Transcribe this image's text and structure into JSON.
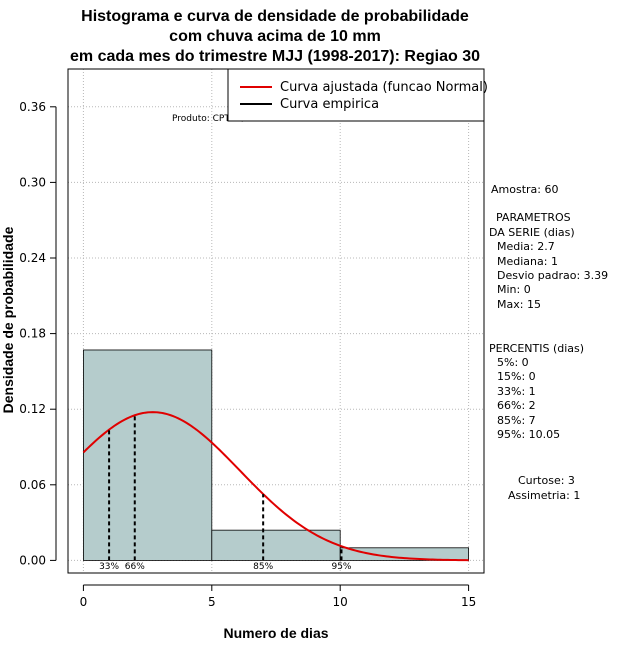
{
  "chart_data": {
    "type": "bar",
    "title_lines": [
      "Histograma e curva de densidade de probabilidade",
      "com chuva acima de 10 mm",
      "em cada mes do trimestre MJJ (1998-2017): Regiao 30"
    ],
    "xlabel": "Numero de dias",
    "ylabel": "Densidade de probabilidade",
    "xlim": [
      -0.6,
      15.6
    ],
    "ylim": [
      -0.01,
      0.39
    ],
    "x_ticks": [
      0,
      5,
      10,
      15
    ],
    "y_ticks": [
      0.0,
      0.06,
      0.12,
      0.18,
      0.24,
      0.3,
      0.36
    ],
    "y_tick_labels": [
      "0.00",
      "0.06",
      "0.12",
      "0.18",
      "0.24",
      "0.30",
      "0.36"
    ],
    "grid": true,
    "bins": [
      {
        "x0": 0,
        "x1": 5,
        "density": 0.167
      },
      {
        "x0": 5,
        "x1": 10,
        "density": 0.024
      },
      {
        "x0": 10,
        "x1": 15,
        "density": 0.01
      }
    ],
    "fitted_curve": {
      "name": "Curva ajustada (funcao Normal)",
      "mean": 2.7,
      "sd": 3.39,
      "x_range": [
        0,
        15
      ],
      "color": "#e00000"
    },
    "empirical_curve": {
      "name": "Curva empirica",
      "color": "#000000"
    },
    "percentile_lines": [
      {
        "x": 1,
        "label": "33%"
      },
      {
        "x": 2,
        "label": "66%"
      },
      {
        "x": 7,
        "label": "85%"
      },
      {
        "x": 10.05,
        "label": "95%"
      }
    ],
    "bar_color": "#b5cccc",
    "legend_position": "top-right",
    "annotation": "Produto: CPTEC/INPE"
  },
  "side_panel": {
    "sample": "Amostra: 60",
    "params_title_1": "PARAMETROS",
    "params_title_2": "DA SERIE (dias)",
    "media": "Media: 2.7",
    "mediana": "Mediana: 1",
    "desvio": "Desvio padrao: 3.39",
    "min": "Min: 0",
    "max": "Max: 15",
    "percentis_title": "PERCENTIS (dias)",
    "p5": "5%: 0",
    "p15": "15%: 0",
    "p33": "33%: 1",
    "p66": "66%: 2",
    "p85": "85%: 7",
    "p95": "95%: 10.05",
    "curtose": "Curtose: 3",
    "assimetria": "Assimetria: 1"
  }
}
